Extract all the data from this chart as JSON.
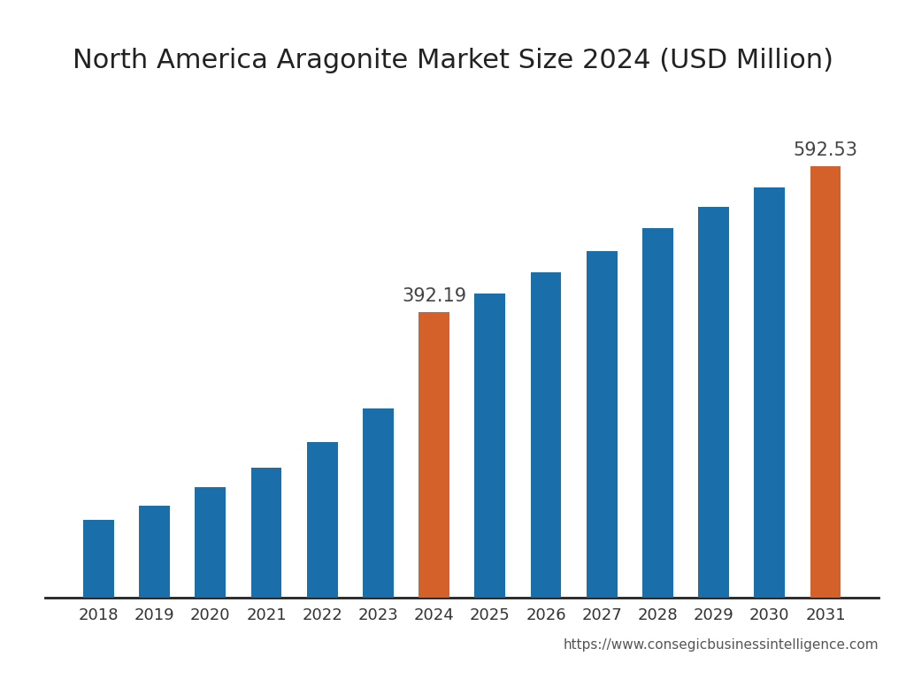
{
  "title": "North America Aragonite Market Size 2024 (USD Million)",
  "years": [
    2018,
    2019,
    2020,
    2021,
    2022,
    2023,
    2024,
    2025,
    2026,
    2027,
    2028,
    2029,
    2030,
    2031
  ],
  "values": [
    107.0,
    126.0,
    152.0,
    178.0,
    213.0,
    260.0,
    392.19,
    418.0,
    447.0,
    476.0,
    507.0,
    537.0,
    563.0,
    592.53
  ],
  "bar_colors": [
    "#1a6faa",
    "#1a6faa",
    "#1a6faa",
    "#1a6faa",
    "#1a6faa",
    "#1a6faa",
    "#d4612a",
    "#1a6faa",
    "#1a6faa",
    "#1a6faa",
    "#1a6faa",
    "#1a6faa",
    "#1a6faa",
    "#d4612a"
  ],
  "highlighted_years": [
    2024,
    2031
  ],
  "highlighted_labels": {
    "2024": "392.19",
    "2031": "592.53"
  },
  "label_fontsize": 15,
  "title_fontsize": 22,
  "tick_fontsize": 13,
  "url_text": "https://www.consegicbusinessintelligence.com",
  "url_fontsize": 11,
  "background_color": "#ffffff",
  "bar_width": 0.55,
  "ylim": [
    0,
    690
  ],
  "spine_color": "#222222",
  "tick_color": "#333333",
  "title_color": "#222222",
  "label_color": "#444444",
  "url_color": "#555555"
}
